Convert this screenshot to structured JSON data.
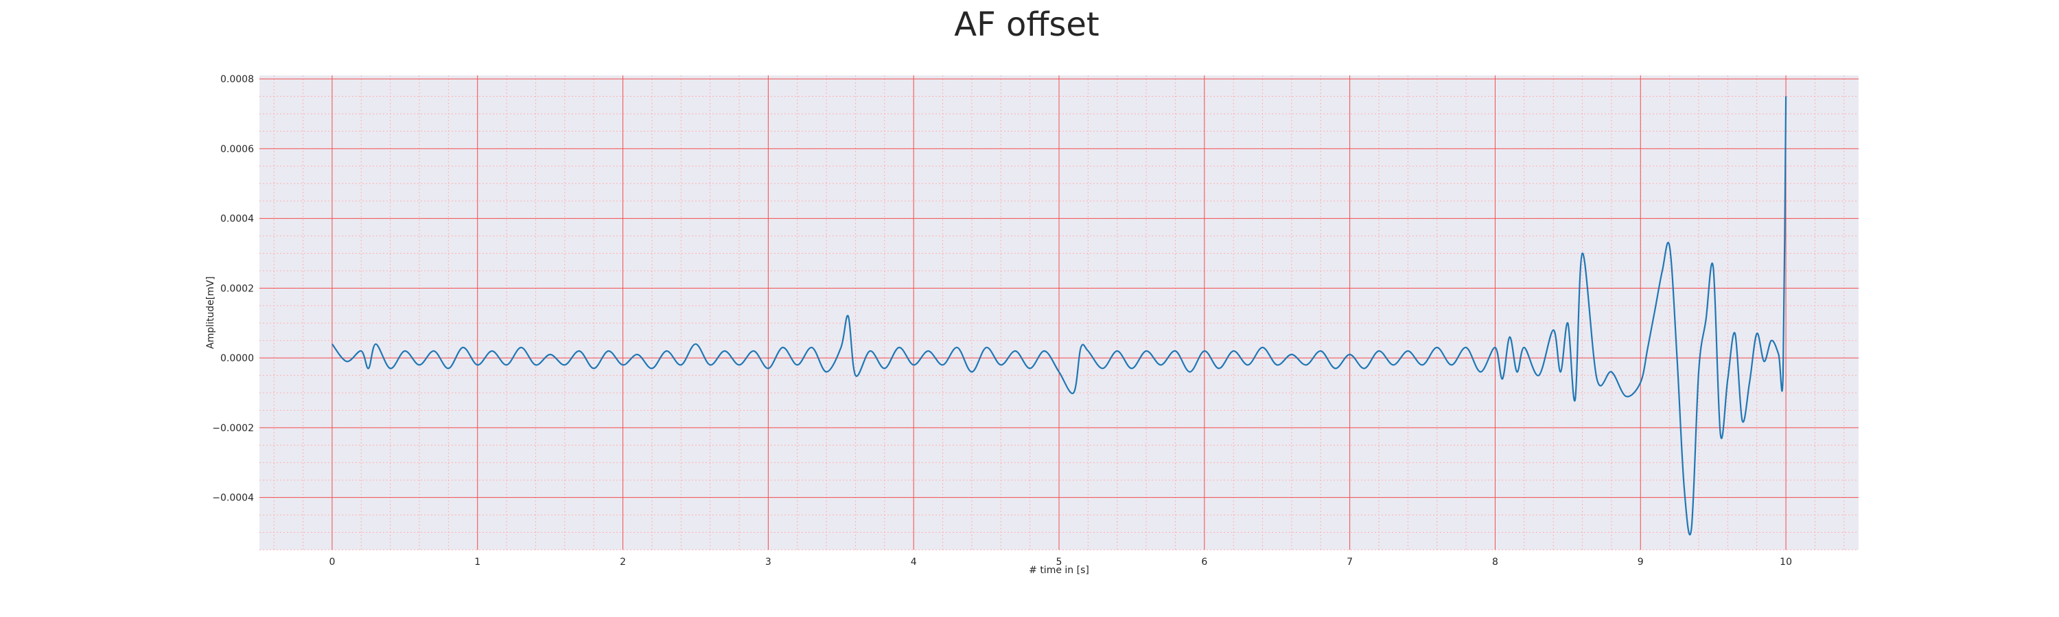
{
  "chart_data": {
    "type": "line",
    "title": "AF offset",
    "xlabel": "# time in [s]",
    "ylabel": "Amplitude[mV]",
    "xlim": [
      -0.5,
      10.5
    ],
    "ylim": [
      -0.00055,
      0.00081
    ],
    "xticks": [
      0,
      1,
      2,
      3,
      4,
      5,
      6,
      7,
      8,
      9,
      10
    ],
    "xtick_labels": [
      "0",
      "1",
      "2",
      "3",
      "4",
      "5",
      "6",
      "7",
      "8",
      "9",
      "10"
    ],
    "yticks": [
      -0.0004,
      -0.0002,
      0.0,
      0.0002,
      0.0004,
      0.0006,
      0.0008
    ],
    "ytick_labels": [
      "−0.0004",
      "−0.0002",
      "0.0000",
      "0.0002",
      "0.0004",
      "0.0006",
      "0.0008"
    ],
    "grid": true,
    "minor_grid": true,
    "series": [
      {
        "color": "#1f77b4",
        "x": [
          0,
          0.1,
          0.2,
          0.25,
          0.3,
          0.4,
          0.5,
          0.6,
          0.7,
          0.8,
          0.9,
          1.0,
          1.1,
          1.2,
          1.3,
          1.4,
          1.5,
          1.6,
          1.7,
          1.8,
          1.9,
          2.0,
          2.1,
          2.2,
          2.3,
          2.4,
          2.5,
          2.6,
          2.7,
          2.8,
          2.9,
          3.0,
          3.1,
          3.2,
          3.3,
          3.4,
          3.5,
          3.55,
          3.6,
          3.7,
          3.8,
          3.9,
          4.0,
          4.1,
          4.2,
          4.3,
          4.4,
          4.5,
          4.6,
          4.7,
          4.8,
          4.9,
          5.0,
          5.1,
          5.15,
          5.2,
          5.3,
          5.4,
          5.5,
          5.6,
          5.7,
          5.8,
          5.9,
          6.0,
          6.1,
          6.2,
          6.3,
          6.4,
          6.5,
          6.6,
          6.7,
          6.8,
          6.9,
          7.0,
          7.1,
          7.2,
          7.3,
          7.4,
          7.5,
          7.6,
          7.7,
          7.8,
          7.9,
          8.0,
          8.05,
          8.1,
          8.15,
          8.2,
          8.3,
          8.4,
          8.45,
          8.5,
          8.55,
          8.6,
          8.7,
          8.8,
          8.9,
          9.0,
          9.05,
          9.1,
          9.15,
          9.2,
          9.25,
          9.3,
          9.35,
          9.4,
          9.45,
          9.5,
          9.55,
          9.6,
          9.65,
          9.7,
          9.75,
          9.8,
          9.85,
          9.9,
          9.95,
          9.98,
          10.0
        ],
        "y": [
          4e-05,
          -1e-05,
          2e-05,
          -3e-05,
          4e-05,
          -3e-05,
          2e-05,
          -2e-05,
          2e-05,
          -3e-05,
          3e-05,
          -2e-05,
          2e-05,
          -2e-05,
          3e-05,
          -2e-05,
          1e-05,
          -2e-05,
          2e-05,
          -3e-05,
          2e-05,
          -2e-05,
          1e-05,
          -3e-05,
          2e-05,
          -2e-05,
          4e-05,
          -2e-05,
          2e-05,
          -2e-05,
          2e-05,
          -3e-05,
          3e-05,
          -2e-05,
          3e-05,
          -4e-05,
          3e-05,
          0.00012,
          -5e-05,
          2e-05,
          -3e-05,
          3e-05,
          -2e-05,
          2e-05,
          -2e-05,
          3e-05,
          -4e-05,
          3e-05,
          -2e-05,
          2e-05,
          -3e-05,
          2e-05,
          -4e-05,
          -0.0001,
          3e-05,
          2e-05,
          -3e-05,
          2e-05,
          -3e-05,
          2e-05,
          -2e-05,
          2e-05,
          -4e-05,
          2e-05,
          -3e-05,
          2e-05,
          -2e-05,
          3e-05,
          -2e-05,
          1e-05,
          -2e-05,
          2e-05,
          -3e-05,
          1e-05,
          -3e-05,
          2e-05,
          -2e-05,
          2e-05,
          -2e-05,
          3e-05,
          -2e-05,
          3e-05,
          -4e-05,
          3e-05,
          -6e-05,
          6e-05,
          -4e-05,
          3e-05,
          -5e-05,
          8e-05,
          -4e-05,
          0.0001,
          -0.00012,
          0.0003,
          -6e-05,
          -4e-05,
          -0.00011,
          -7e-05,
          3e-05,
          0.00014,
          0.00025,
          0.00032,
          1e-05,
          -0.00037,
          -0.00049,
          -4e-05,
          0.00011,
          0.00026,
          -0.00022,
          -6e-05,
          7e-05,
          -0.00018,
          -7e-05,
          7e-05,
          -1e-05,
          5e-05,
          1e-05,
          -5e-05,
          0.00075
        ]
      }
    ]
  }
}
